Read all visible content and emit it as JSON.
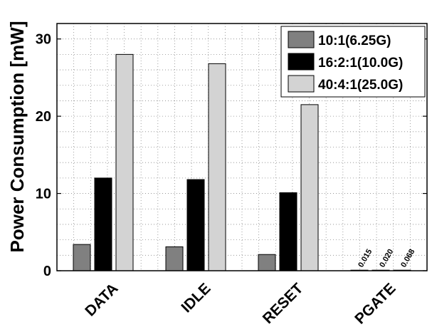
{
  "chart_data": {
    "type": "bar",
    "title": "",
    "xlabel": "",
    "ylabel": "Power Consumption [mW]",
    "ylim": [
      0,
      32
    ],
    "yticks": [
      0,
      10,
      20,
      30
    ],
    "grid": true,
    "legend_position": "top-right",
    "categories": [
      "DATA",
      "IDLE",
      "RESET",
      "PGATE"
    ],
    "series": [
      {
        "name": "10:1(6.25G)",
        "color": "#808080",
        "values": [
          3.4,
          3.1,
          2.1,
          0.015
        ]
      },
      {
        "name": "16:2:1(10.0G)",
        "color": "#000000",
        "values": [
          12.0,
          11.8,
          10.1,
          0.02
        ]
      },
      {
        "name": "40:4:1(25.0G)",
        "color": "#d3d3d3",
        "values": [
          28.0,
          26.8,
          21.5,
          0.068
        ]
      }
    ],
    "annotations": [
      {
        "category": "PGATE",
        "series": "10:1(6.25G)",
        "text": "0.015"
      },
      {
        "category": "PGATE",
        "series": "16:2:1(10.0G)",
        "text": "0.020"
      },
      {
        "category": "PGATE",
        "series": "40:4:1(25.0G)",
        "text": "0.068"
      }
    ]
  }
}
